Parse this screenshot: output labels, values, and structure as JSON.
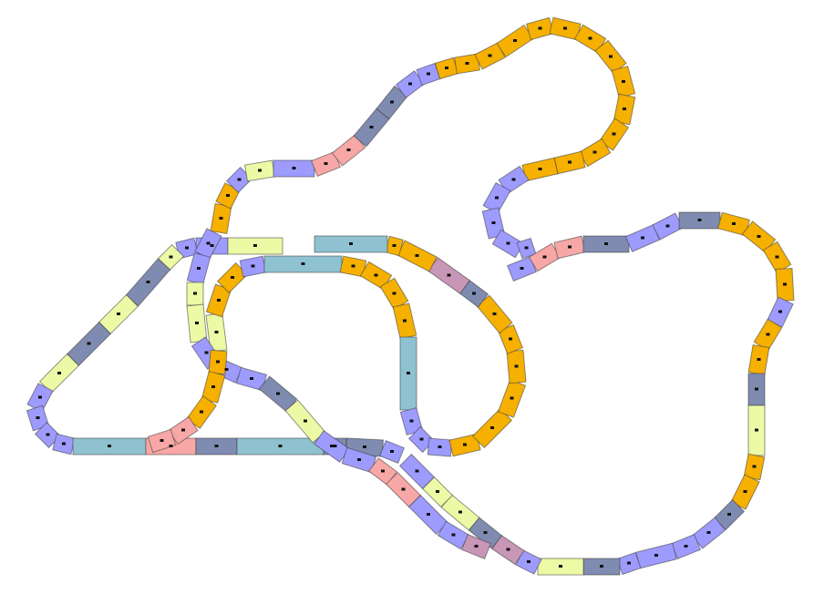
{
  "diagram": {
    "kind": "track-layout",
    "legend": {
      "curve": "#f5b000",
      "curve-small": "#9e9bff",
      "straight-long": "#8fc2d0",
      "straight-medium": "#7f8bb0",
      "straight-short": "#ecfaa6",
      "straight-red": "#f7a7a5",
      "switch": "#c896b7"
    }
  }
}
